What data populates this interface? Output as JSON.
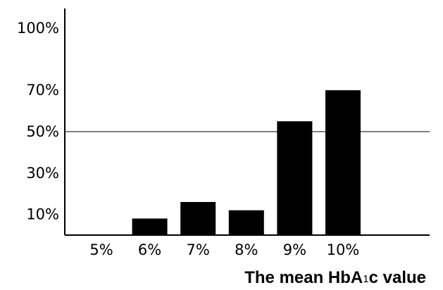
{
  "chart_data": {
    "type": "bar",
    "categories": [
      "5%",
      "6%",
      "7%",
      "8%",
      "9%",
      "10%"
    ],
    "values": [
      0,
      8,
      16,
      12,
      55,
      70
    ],
    "y_tick_labels": [
      "100%",
      "70%",
      "50%",
      "30%",
      "10%"
    ],
    "y_tick_values": [
      100,
      70,
      50,
      30,
      10
    ],
    "ylim": [
      0,
      100
    ],
    "reference_line": 50,
    "xlabel": "The mean HbA1c value",
    "xlabel_main": "The mean HbA",
    "xlabel_sub": "1",
    "xlabel_tail": "c value",
    "ylabel": "",
    "title": "",
    "grid": false,
    "bar_color": "#000000"
  }
}
